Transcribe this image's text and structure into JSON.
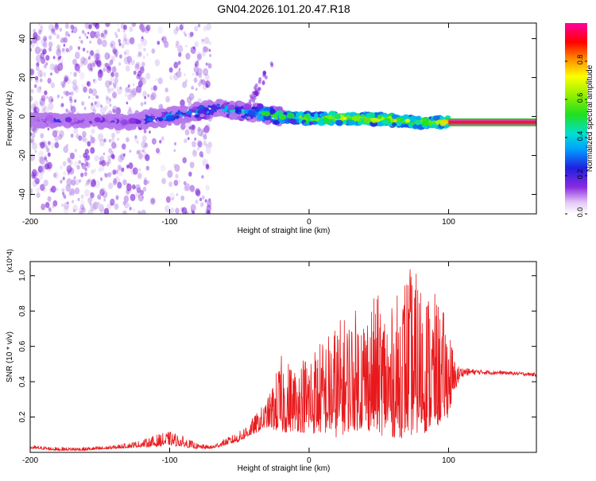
{
  "title": "GN04.2026.101.20.47.R18",
  "colors": {
    "signal_line": "#e8191c",
    "band_green": "#2fbf2f",
    "band_magenta": "#e8199a",
    "band_red": "#e8191c",
    "cloud_purple": "#7a1fd6"
  },
  "chart_data": [
    {
      "type": "heatmap",
      "title": "GN04.2026.101.20.47.R18",
      "xlabel": "Height of straight line (km)",
      "ylabel": "Frequency (Hz)",
      "xlim": [
        -200,
        163
      ],
      "ylim": [
        -50,
        48
      ],
      "xticks": [
        -200,
        -100,
        0,
        100
      ],
      "xtick_labels": [
        "-200",
        "-100",
        "0",
        "100"
      ],
      "yticks": [
        -40,
        -20,
        0,
        20,
        40
      ],
      "ytick_labels": [
        "-40",
        "-20",
        "0",
        "20",
        "40"
      ],
      "colorbar": {
        "label": "Normalized spectral amplitude",
        "range": [
          0,
          1
        ],
        "ticks": [
          0.0,
          0.2,
          0.4,
          0.6,
          0.8
        ],
        "tick_labels": [
          "0.0",
          "0.2",
          "0.4",
          "0.6",
          "0.8"
        ],
        "colormap": "rainbow (white-violet-blue-cyan-green-yellow-red-magenta)"
      },
      "ridge": {
        "x": [
          -200,
          -160,
          -130,
          -110,
          -90,
          -75,
          -65,
          -50,
          -40,
          -30,
          -20,
          0,
          20,
          40,
          60,
          80,
          100,
          163
        ],
        "frequency": [
          -2,
          -2,
          -3,
          -1,
          1,
          3,
          4,
          3,
          2,
          1,
          0,
          -1,
          -1,
          -1,
          -2,
          -3,
          -3,
          -3
        ],
        "amplitude": [
          0.15,
          0.15,
          0.18,
          0.25,
          0.3,
          0.35,
          0.3,
          0.35,
          0.4,
          0.45,
          0.5,
          0.6,
          0.7,
          0.7,
          0.65,
          0.6,
          0.7,
          0.9
        ]
      },
      "steady_band": {
        "x_start": 100,
        "x_end": 163,
        "frequency_top": -1,
        "frequency_bottom": -5
      }
    },
    {
      "type": "line",
      "xlabel": "Height of straight line (km)",
      "ylabel": "SNR (10 * v/v)",
      "y_multiplier": "(x10^4)",
      "xlim": [
        -200,
        163
      ],
      "ylim": [
        0,
        1.08
      ],
      "xticks": [
        -200,
        -100,
        0,
        100
      ],
      "xtick_labels": [
        "-200",
        "-100",
        "0",
        "100"
      ],
      "yticks": [
        0.2,
        0.4,
        0.6,
        0.8,
        1.0
      ],
      "ytick_labels": [
        "0.2",
        "0.4",
        "0.6",
        "0.8",
        "1.0"
      ],
      "series": [
        {
          "name": "SNR",
          "x": [
            -200,
            -180,
            -160,
            -140,
            -120,
            -110,
            -100,
            -90,
            -80,
            -70,
            -60,
            -50,
            -40,
            -30,
            -20,
            -10,
            0,
            10,
            20,
            30,
            40,
            50,
            60,
            70,
            80,
            90,
            100,
            105,
            110,
            120,
            140,
            163
          ],
          "envelope_low": [
            0.02,
            0.01,
            0.01,
            0.02,
            0.03,
            0.03,
            0.04,
            0.03,
            0.02,
            0.02,
            0.04,
            0.06,
            0.1,
            0.14,
            0.1,
            0.12,
            0.1,
            0.1,
            0.08,
            0.12,
            0.12,
            0.1,
            0.08,
            0.08,
            0.1,
            0.12,
            0.2,
            0.35,
            0.43,
            0.44,
            0.44,
            0.43
          ],
          "envelope_high": [
            0.04,
            0.03,
            0.03,
            0.04,
            0.07,
            0.1,
            0.12,
            0.09,
            0.05,
            0.04,
            0.08,
            0.12,
            0.2,
            0.3,
            0.55,
            0.5,
            0.6,
            0.65,
            0.75,
            0.8,
            0.85,
            0.9,
            0.82,
            1.07,
            1.0,
            0.9,
            0.75,
            0.5,
            0.48,
            0.47,
            0.46,
            0.45
          ]
        }
      ]
    }
  ]
}
